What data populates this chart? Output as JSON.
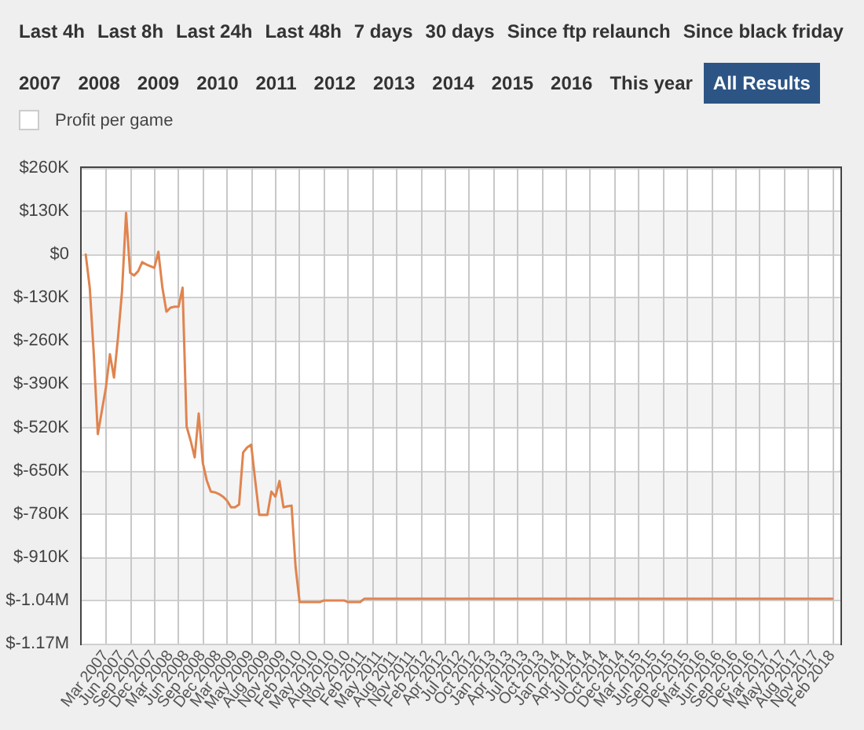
{
  "chart_data": {
    "type": "line",
    "annotations": [
      "Last 4h",
      "Last 8h",
      "Last 24h",
      "Last 48h",
      "7 days",
      "30 days",
      "Since ftp relaunch",
      "Since black friday",
      "2007",
      "2008",
      "2009",
      "2010",
      "2011",
      "2012",
      "2013",
      "2014",
      "2015",
      "2016",
      "This year",
      "All Results",
      "Profit per game"
    ],
    "categories": [
      null,
      null,
      null,
      null,
      null,
      null,
      "Mar 2007",
      null,
      null,
      null,
      "Jun 2007",
      null,
      null,
      null,
      "Sep 2007",
      null,
      null,
      null,
      "Dec 2007",
      null,
      null,
      null,
      "Mar 2008",
      null,
      null,
      null,
      "Jun 2008",
      null,
      null,
      null,
      "Sep 2008",
      null,
      null,
      null,
      "Dec 2008",
      null,
      null,
      null,
      "Mar 2009",
      null,
      null,
      null,
      "May 2009",
      null,
      null,
      null,
      "Aug 2009",
      null,
      null,
      null,
      "Nov 2009",
      null,
      null,
      null,
      "Feb 2010",
      null,
      null,
      null,
      "May 2010",
      null,
      null,
      null,
      "Aug 2010",
      null,
      null,
      null,
      "Nov 2010",
      null,
      null,
      null,
      "Feb 2011",
      null,
      null,
      null,
      "May 2011",
      null,
      null,
      null,
      "Aug 2011",
      null,
      null,
      null,
      "Nov 2011",
      null,
      null,
      null,
      "Feb 2012",
      null,
      null,
      null,
      "Apr 2012",
      null,
      null,
      null,
      "Jul 2012",
      null,
      null,
      null,
      "Oct 2012",
      null,
      null,
      null,
      "Jan 2013",
      null,
      null,
      null,
      "Apr 2013",
      null,
      null,
      null,
      "Jul 2013",
      null,
      null,
      null,
      "Oct 2013",
      null,
      null,
      null,
      "Jan 2014",
      null,
      null,
      null,
      "Apr 2014",
      null,
      null,
      null,
      "Jul 2014",
      null,
      null,
      null,
      "Oct 2014",
      null,
      null,
      null,
      "Dec 2014",
      null,
      null,
      null,
      "Mar 2015",
      null,
      null,
      null,
      "Jun 2015",
      null,
      null,
      null,
      "Sep 2015",
      null,
      null,
      null,
      "Dec 2015",
      null,
      null,
      null,
      "Mar 2016",
      null,
      null,
      null,
      "Jun 2016",
      null,
      null,
      null,
      "Sep 2016",
      null,
      null,
      null,
      "Dec 2016",
      null,
      null,
      null,
      "Mar 2017",
      null,
      null,
      null,
      "May 2017",
      null,
      null,
      null,
      "Aug 2017",
      null,
      null,
      null,
      "Nov 2017",
      null,
      null,
      null,
      "Feb 2018",
      null,
      null
    ],
    "series": [
      {
        "color": "#e0844f",
        "values": [
          null,
          0,
          -100000,
          -300000,
          -540000,
          -470000,
          -400000,
          -300000,
          -370000,
          -250000,
          -110000,
          125000,
          -55000,
          -63000,
          -50000,
          -23000,
          -30000,
          -35000,
          -40000,
          8000,
          -100000,
          -172000,
          -160000,
          -157000,
          -157000,
          -100000,
          -517000,
          -560000,
          -610000,
          -478000,
          -626000,
          -680000,
          -713000,
          -715000,
          -720000,
          -728000,
          -740000,
          -760000,
          -760000,
          -752000,
          -595000,
          -580000,
          -572000,
          -680000,
          -783000,
          -783000,
          -783000,
          -713000,
          -728000,
          -681000,
          -760000,
          -757000,
          -755000,
          -940000,
          -1045000,
          -1045000,
          -1045000,
          -1045000,
          -1045000,
          -1045000,
          -1040000,
          -1040000,
          -1040000,
          -1040000,
          -1040000,
          -1040000,
          -1045000,
          -1045000,
          -1045000,
          -1045000,
          -1035000,
          -1035000,
          -1035000,
          -1035000,
          -1035000,
          -1035000,
          -1035000,
          -1035000,
          -1035000,
          -1035000,
          -1035000,
          -1035000,
          -1035000,
          -1035000,
          -1035000,
          -1035000,
          -1035000,
          -1035000,
          -1035000,
          -1035000,
          -1035000,
          -1035000,
          -1035000,
          -1035000,
          -1035000,
          -1035000,
          -1035000,
          -1035000,
          -1035000,
          -1035000,
          -1035000,
          -1035000,
          -1035000,
          -1035000,
          -1035000,
          -1035000,
          -1035000,
          -1035000,
          -1035000,
          -1035000,
          -1035000,
          -1035000,
          -1035000,
          -1035000,
          -1035000,
          -1035000,
          -1035000,
          -1035000,
          -1035000,
          -1035000,
          -1035000,
          -1035000,
          -1035000,
          -1035000,
          -1035000,
          -1035000,
          -1035000,
          -1035000,
          -1035000,
          -1035000,
          -1035000,
          -1035000,
          -1035000,
          -1035000,
          -1035000,
          -1035000,
          -1035000,
          -1035000,
          -1035000,
          -1035000,
          -1035000,
          -1035000,
          -1035000,
          -1035000,
          -1035000,
          -1035000,
          -1035000,
          -1035000,
          -1035000,
          -1035000,
          -1035000,
          -1035000,
          -1035000,
          -1035000,
          -1035000,
          -1035000,
          -1035000,
          -1035000,
          -1035000,
          -1035000,
          -1035000,
          -1035000,
          -1035000,
          -1035000,
          -1035000,
          -1035000,
          -1035000,
          -1035000,
          -1035000,
          -1035000,
          -1035000,
          -1035000,
          -1035000,
          -1035000,
          -1035000,
          -1035000,
          -1035000,
          -1035000,
          -1035000,
          -1035000,
          -1035000,
          -1035000,
          -1035000,
          -1035000,
          -1035000,
          -1035000,
          -1035000,
          null,
          null
        ]
      }
    ],
    "ylim": [
      -1170000,
      260000
    ],
    "yticks": [
      {
        "value": 260000,
        "label": "$260K"
      },
      {
        "value": 130000,
        "label": "$130K"
      },
      {
        "value": 0,
        "label": "$0"
      },
      {
        "value": -130000,
        "label": "$-130K"
      },
      {
        "value": -260000,
        "label": "$-260K"
      },
      {
        "value": -390000,
        "label": "$-390K"
      },
      {
        "value": -520000,
        "label": "$-520K"
      },
      {
        "value": -650000,
        "label": "$-650K"
      },
      {
        "value": -780000,
        "label": "$-780K"
      },
      {
        "value": -910000,
        "label": "$-910K"
      },
      {
        "value": -1040000,
        "label": "$-1.04M"
      },
      {
        "value": -1170000,
        "label": "$-1.17M"
      }
    ],
    "grid": true
  }
}
